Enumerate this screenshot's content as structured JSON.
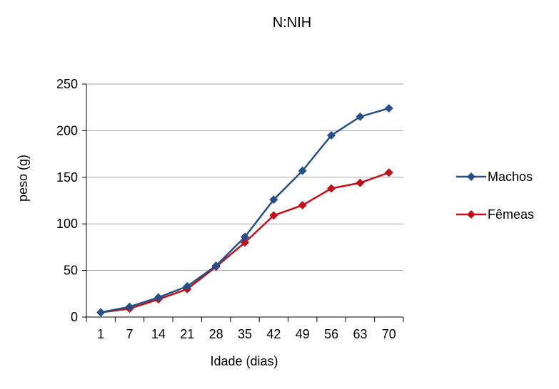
{
  "chart_data": {
    "type": "line",
    "title": "N:NIH",
    "xlabel": "Idade (dias)",
    "ylabel": "peso (g)",
    "categories": [
      "1",
      "7",
      "14",
      "21",
      "28",
      "35",
      "42",
      "49",
      "56",
      "63",
      "70"
    ],
    "ylim": [
      0,
      250
    ],
    "yticks": [
      0,
      50,
      100,
      150,
      200,
      250
    ],
    "grid": true,
    "legend_position": "right",
    "series": [
      {
        "name": "Machos",
        "color": "#254F86",
        "marker": "diamond",
        "values": [
          5,
          11,
          21,
          33,
          55,
          86,
          126,
          157,
          195,
          215,
          224
        ]
      },
      {
        "name": "Fêmeas",
        "color": "#C0101A",
        "marker": "diamond",
        "values": [
          5,
          9,
          19,
          30,
          54,
          80,
          109,
          120,
          138,
          144,
          155
        ]
      }
    ]
  }
}
